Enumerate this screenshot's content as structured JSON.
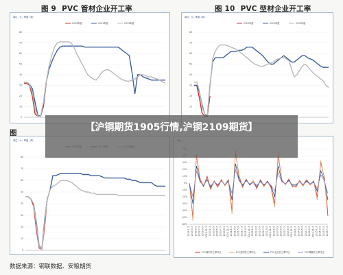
{
  "figures": {
    "fig9": {
      "number": "图 9",
      "title": "PVC 管材企业开工率",
      "unit": "%",
      "subtitle": "单位：%；季度（周）"
    },
    "fig10": {
      "number": "图 10",
      "title": "PVC 型材企业开工率",
      "unit": "%",
      "subtitle": "单位：%；季度（周）"
    },
    "fig11": {
      "number": "图",
      "subtitle": "单位：%；季度（周）"
    },
    "fig12": {
      "number": "",
      "title": "PVC企业开工率环比",
      "subtitle": "环比"
    }
  },
  "overlay_title": "【沪铜期货1905行情,沪铜2109期货】",
  "source": "数据来源：钢联数据、安粮期货",
  "colors": {
    "red": "#c0392b",
    "blue": "#3d5f9a",
    "grey": "#b8b8b8",
    "orange": "#e8a070",
    "navy": "#2f4f86",
    "purple": "#9c8fb8"
  },
  "chart_data": [
    {
      "type": "line",
      "title": "PVC 管材企业开工率",
      "ylim": [
        0,
        80
      ],
      "x": [
        0,
        1,
        2,
        3,
        4,
        5,
        6,
        7,
        8,
        9,
        10,
        11,
        12,
        13,
        14,
        15,
        16,
        17,
        18,
        19,
        20,
        21,
        22,
        23,
        24,
        25,
        26,
        27,
        28,
        29,
        30,
        31,
        32,
        33,
        34,
        35,
        36,
        37,
        38,
        39,
        40,
        41,
        42,
        43,
        44,
        45,
        46,
        47,
        48,
        49,
        50,
        51
      ],
      "series": [
        {
          "name": "2020年度",
          "values": [
            32,
            32,
            30,
            20,
            3,
            1,
            1,
            10,
            32,
            null,
            null,
            null,
            null,
            null,
            null,
            null,
            null,
            null,
            null,
            null,
            null,
            null,
            null,
            null,
            null,
            null,
            null,
            null,
            null,
            null,
            null,
            null,
            null,
            null,
            null,
            null,
            null,
            null,
            null,
            null,
            null,
            null,
            null,
            null,
            null,
            null,
            null,
            null,
            null,
            null,
            null,
            null
          ]
        },
        {
          "name": "2021年度",
          "values": [
            33,
            33,
            31,
            27,
            14,
            2,
            1,
            12,
            33,
            45,
            52,
            58,
            63,
            66,
            67,
            67,
            67,
            67,
            67,
            67,
            67,
            67,
            66,
            66,
            66,
            66,
            66,
            66,
            66,
            66,
            66,
            66,
            66,
            66,
            66,
            64,
            62,
            60,
            58,
            42,
            22,
            40,
            40,
            38,
            37,
            36,
            35,
            35,
            35,
            35,
            35,
            35
          ]
        },
        {
          "name": "2019年度",
          "values": [
            33,
            33,
            31,
            24,
            8,
            1,
            1,
            14,
            33,
            48,
            58,
            66,
            70,
            71,
            71,
            71,
            71,
            70,
            66,
            60,
            55,
            50,
            45,
            40,
            38,
            36,
            35,
            38,
            42,
            44,
            45,
            44,
            42,
            40,
            38,
            36,
            35,
            34,
            34,
            35,
            36,
            38,
            40,
            40,
            39,
            38,
            38,
            37,
            36,
            35,
            33,
            32
          ]
        }
      ]
    },
    {
      "type": "line",
      "title": "PVC 型材企业开工率",
      "ylim": [
        0,
        80
      ],
      "x": [
        0,
        1,
        2,
        3,
        4,
        5,
        6,
        7,
        8,
        9,
        10,
        11,
        12,
        13,
        14,
        15,
        16,
        17,
        18,
        19,
        20,
        21,
        22,
        23,
        24,
        25,
        26,
        27,
        28,
        29,
        30,
        31,
        32,
        33,
        34,
        35,
        36,
        37,
        38,
        39,
        40,
        41,
        42,
        43,
        44,
        45,
        46,
        47,
        48,
        49,
        50,
        51
      ],
      "series": [
        {
          "name": "2020年度",
          "values": [
            30,
            30,
            18,
            4,
            1,
            1,
            20,
            null,
            null,
            null,
            null,
            null,
            null,
            null,
            null,
            null,
            null,
            null,
            null,
            null,
            null,
            null,
            null,
            null,
            null,
            null,
            null,
            null,
            null,
            null,
            null,
            null,
            null,
            null,
            null,
            null,
            null,
            null,
            null,
            null,
            null,
            null,
            null,
            null,
            null,
            null,
            null,
            null,
            null,
            null,
            null,
            null
          ]
        },
        {
          "name": "2021年度",
          "values": [
            30,
            30,
            24,
            12,
            3,
            1,
            30,
            52,
            56,
            56,
            56,
            56,
            58,
            60,
            62,
            62,
            62,
            63,
            63,
            64,
            66,
            66,
            66,
            64,
            62,
            60,
            58,
            55,
            52,
            50,
            50,
            52,
            54,
            56,
            58,
            56,
            54,
            52,
            52,
            54,
            56,
            58,
            58,
            56,
            55,
            54,
            52,
            50,
            48,
            47,
            47,
            47
          ]
        },
        {
          "name": "2019年度",
          "values": [
            33,
            33,
            25,
            10,
            3,
            2,
            28,
            55,
            62,
            66,
            68,
            68,
            68,
            67,
            66,
            65,
            64,
            62,
            60,
            58,
            56,
            54,
            52,
            50,
            49,
            48,
            48,
            49,
            50,
            51,
            52,
            54,
            55,
            56,
            56,
            55,
            53,
            45,
            38,
            40,
            44,
            48,
            50,
            48,
            45,
            42,
            40,
            38,
            36,
            34,
            30,
            28
          ]
        }
      ]
    },
    {
      "type": "line",
      "ylim": [
        0,
        80
      ],
      "x": [
        0,
        1,
        2,
        3,
        4,
        5,
        6,
        7,
        8,
        9,
        10,
        11,
        12,
        13,
        14,
        15,
        16,
        17,
        18,
        19,
        20,
        21,
        22,
        23,
        24,
        25,
        26,
        27,
        28,
        29,
        30,
        31,
        32,
        33,
        34,
        35,
        36,
        37,
        38,
        39,
        40,
        41,
        42,
        43,
        44,
        45,
        46,
        47,
        48,
        49,
        50,
        51
      ],
      "series": [
        {
          "name": "2020年度",
          "values": [
            46,
            46,
            44,
            38,
            18,
            2,
            1,
            20,
            45,
            null,
            null,
            null,
            null,
            null,
            null,
            null,
            null,
            null,
            null,
            null,
            null,
            null,
            null,
            null,
            null,
            null,
            null,
            null,
            null,
            null,
            null,
            null,
            null,
            null,
            null,
            null,
            null,
            null,
            null,
            null,
            null,
            null,
            null,
            null,
            null,
            null,
            null,
            null,
            null,
            null,
            null,
            null
          ]
        },
        {
          "name": "2021年度",
          "values": [
            46,
            46,
            44,
            40,
            24,
            4,
            1,
            26,
            44,
            52,
            64,
            64,
            65,
            66,
            66,
            66,
            66,
            66,
            66,
            66,
            66,
            65,
            65,
            65,
            64,
            64,
            64,
            64,
            63,
            62,
            62,
            62,
            62,
            62,
            62,
            62,
            62,
            61,
            61,
            60,
            60,
            59,
            58,
            58,
            58,
            58,
            58,
            56,
            55,
            55,
            55,
            55
          ]
        },
        {
          "name": "2019年度",
          "values": [
            46,
            46,
            44,
            40,
            22,
            3,
            1,
            24,
            44,
            52,
            55,
            56,
            58,
            60,
            60,
            60,
            59,
            58,
            56,
            54,
            52,
            51,
            50,
            50,
            49,
            49,
            48,
            48,
            48,
            48,
            48,
            48,
            48,
            48,
            47,
            47,
            47,
            47,
            47,
            47,
            47,
            47,
            47,
            47,
            47,
            47,
            47,
            47,
            47,
            47,
            47,
            47
          ]
        }
      ]
    },
    {
      "type": "line",
      "title": "PVC企业开工率环比",
      "ylim": [
        -60,
        50
      ],
      "yticks": [
        "50%",
        "40%",
        "30%",
        "20%",
        "10%",
        "0%",
        "-10%",
        "-20%",
        "-30%",
        "-40%",
        "-50%",
        "-60%"
      ],
      "categories": [
        "2019-1-3",
        "2019-3-3",
        "2019-5-3",
        "2019-7-3",
        "2019-9-3",
        "2019-11-3",
        "2020-1-3",
        "2020-3-3",
        "2020-5-3",
        "2020-7-3",
        "2020-9-3",
        "2020-11-3",
        "2021-1-3",
        "2021-3-3",
        "2021-5-3",
        "2021-7-3",
        "2021-9-3",
        "2021-11-3",
        "2022-1-3",
        "2022-3-3",
        "2022-5-3",
        "2022-7-3",
        "2022-9-3",
        "2022-11-3",
        "2023-1-3",
        "2023-3-3",
        "2023-5-3",
        "2023-7-3",
        "2023-9-3",
        "2023-11-3",
        "2024-1-3",
        "2024-3-3",
        "2024-5-3",
        "2024-7-3",
        "2024-9-3",
        "2024-11-3",
        "2025-1-3",
        "2025-3-3",
        "2025-5-3",
        "2025-7-3"
      ],
      "series": [
        {
          "name": "PVC管材开工率环比",
          "values": [
            0,
            -50,
            40,
            5,
            -5,
            10,
            -8,
            3,
            -6,
            4,
            -3,
            5,
            -40,
            45,
            10,
            -5,
            6,
            -3,
            2,
            -8,
            5,
            -4,
            3,
            -6,
            -30,
            40,
            5,
            -2,
            6,
            -4,
            -6,
            4,
            -3,
            5,
            -2,
            3,
            -20,
            30,
            8,
            -48
          ]
        },
        {
          "name": "PVC型材开工率环比",
          "values": [
            0,
            -55,
            42,
            8,
            -3,
            6,
            -10,
            4,
            -5,
            6,
            -4,
            3,
            -45,
            48,
            6,
            -7,
            5,
            -2,
            4,
            -6,
            3,
            -5,
            2,
            -8,
            -35,
            44,
            6,
            -3,
            5,
            -6,
            -4,
            3,
            -5,
            4,
            -3,
            2,
            -25,
            33,
            6,
            -40
          ]
        },
        {
          "name": "PVC企业开工率环比",
          "values": [
            0,
            -30,
            25,
            3,
            -4,
            5,
            -6,
            2,
            -3,
            3,
            -2,
            3,
            -25,
            28,
            5,
            -3,
            4,
            -2,
            1,
            -5,
            3,
            -3,
            2,
            -4,
            -20,
            25,
            3,
            -1,
            4,
            -3,
            -3,
            2,
            -2,
            3,
            -1,
            2,
            -12,
            18,
            5,
            -25
          ]
        },
        {
          "name": "PVC薄膜开工率环比",
          "values": [
            0,
            -20,
            18,
            2,
            -3,
            4,
            -4,
            2,
            -2,
            3,
            -2,
            2,
            -15,
            20,
            3,
            -2,
            3,
            -1,
            1,
            -3,
            2,
            -2,
            1,
            -3,
            -12,
            15,
            2,
            -1,
            3,
            -2,
            -2,
            2,
            -2,
            2,
            -1,
            1,
            -8,
            12,
            3,
            -15
          ]
        }
      ]
    }
  ]
}
